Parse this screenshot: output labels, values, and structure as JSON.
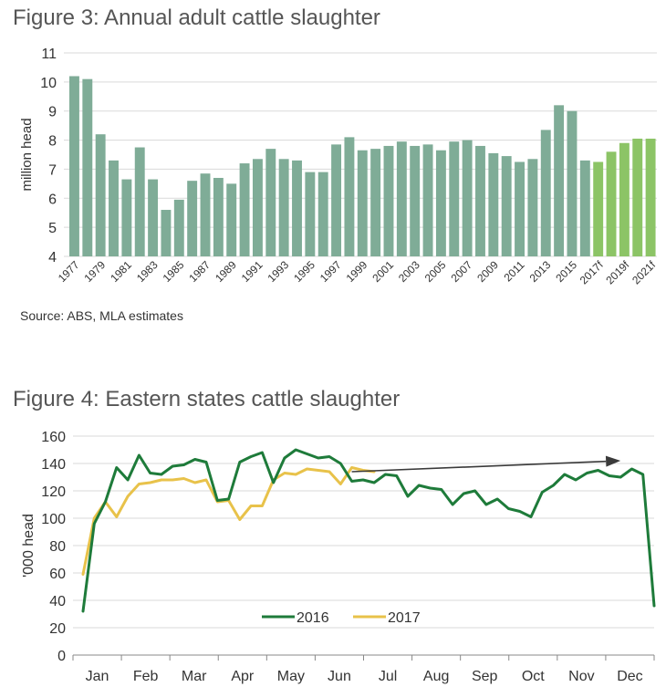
{
  "figure3": {
    "title": "Figure 3: Annual adult cattle slaughter",
    "source": "Source: ABS, MLA estimates",
    "colors": {
      "actual": "#7fac97",
      "forecast": "#8cc466",
      "grid": "#d9d9d9"
    }
  },
  "figure4": {
    "title": "Figure 4: Eastern states cattle slaughter",
    "colors": {
      "s2016": "#1e7b3a",
      "s2017": "#e8c24a",
      "arrow": "#3a3a3a"
    }
  },
  "chart_data": [
    {
      "type": "bar",
      "title": "Figure 3: Annual adult cattle slaughter",
      "ylabel": "million head",
      "xlabel": "",
      "ylim": [
        4,
        11
      ],
      "yticks": [
        4,
        5,
        6,
        7,
        8,
        9,
        10,
        11
      ],
      "grid": true,
      "categories": [
        "1977",
        "1978",
        "1979",
        "1980",
        "1981",
        "1982",
        "1983",
        "1984",
        "1985",
        "1986",
        "1987",
        "1988",
        "1989",
        "1990",
        "1991",
        "1992",
        "1993",
        "1994",
        "1995",
        "1996",
        "1997",
        "1998",
        "1999",
        "2000",
        "2001",
        "2002",
        "2003",
        "2004",
        "2005",
        "2006",
        "2007",
        "2008",
        "2009",
        "2010",
        "2011",
        "2012",
        "2013",
        "2014",
        "2015",
        "2016",
        "2017f",
        "2018f",
        "2019f",
        "2020f",
        "2021f"
      ],
      "tick_labels": [
        "1977",
        "1979",
        "1981",
        "1983",
        "1985",
        "1987",
        "1989",
        "1991",
        "1993",
        "1995",
        "1997",
        "1999",
        "2001",
        "2003",
        "2005",
        "2007",
        "2009",
        "2011",
        "2013",
        "2015",
        "2017f",
        "2019f",
        "2021f"
      ],
      "values": [
        10.2,
        10.1,
        8.2,
        7.3,
        6.65,
        7.75,
        6.65,
        5.6,
        5.95,
        6.6,
        6.85,
        6.7,
        6.5,
        7.2,
        7.35,
        7.7,
        7.35,
        7.3,
        6.9,
        6.9,
        7.85,
        8.1,
        7.65,
        7.7,
        7.8,
        7.95,
        7.8,
        7.85,
        7.65,
        7.95,
        8.0,
        7.8,
        7.55,
        7.45,
        7.25,
        7.35,
        8.35,
        9.2,
        9.0,
        7.3,
        7.25,
        7.6,
        7.9,
        8.05,
        8.05
      ],
      "forecast_from_index": 40
    },
    {
      "type": "line",
      "title": "Figure 4: Eastern states cattle slaughter",
      "ylabel": "'000 head",
      "xlabel": "",
      "ylim": [
        0,
        160
      ],
      "yticks": [
        0,
        20,
        40,
        60,
        80,
        100,
        120,
        140,
        160
      ],
      "grid": true,
      "months": [
        "Jan",
        "Feb",
        "Mar",
        "Apr",
        "May",
        "Jun",
        "Jul",
        "Aug",
        "Sep",
        "Oct",
        "Nov",
        "Dec"
      ],
      "weeks_total": 52,
      "legend": "bottom-center",
      "series": [
        {
          "name": "2016",
          "values": [
            32,
            96,
            112,
            137,
            128,
            146,
            133,
            132,
            138,
            139,
            143,
            141,
            113,
            114,
            141,
            145,
            148,
            126,
            144,
            150,
            147,
            144,
            145,
            140,
            127,
            128,
            126,
            132,
            131,
            116,
            124,
            122,
            121,
            110,
            118,
            120,
            110,
            114,
            107,
            105,
            101,
            119,
            124,
            132,
            128,
            133,
            135,
            131,
            130,
            136,
            132,
            36
          ]
        },
        {
          "name": "2017",
          "values": [
            59,
            100,
            112,
            101,
            116,
            125,
            126,
            128,
            128,
            129,
            126,
            128,
            112,
            113,
            99,
            109,
            109,
            128,
            133,
            132,
            136,
            135,
            134,
            125,
            137,
            135,
            134
          ]
        }
      ],
      "annotation": {
        "type": "arrow",
        "from": {
          "week": 24,
          "value": 134
        },
        "to": {
          "week": 48,
          "value": 142
        }
      }
    }
  ]
}
